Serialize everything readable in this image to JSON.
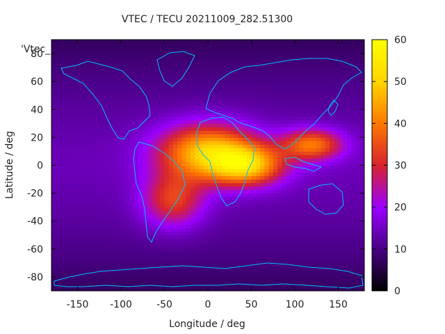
{
  "chart_data": {
    "type": "heatmap",
    "title": "VTEC / TECU 20211009_282.51300",
    "xlabel": "Longitude / deg",
    "ylabel": "Latitude / deg",
    "series_label": "'Vtec_",
    "xlim": [
      -180,
      180
    ],
    "ylim": [
      -90,
      90
    ],
    "xticks": [
      -150,
      -100,
      -50,
      0,
      50,
      100,
      150
    ],
    "yticks": [
      -80,
      -60,
      -40,
      -20,
      0,
      20,
      40,
      60,
      80
    ],
    "colorbar": {
      "range": [
        0,
        60
      ],
      "ticks": [
        0,
        10,
        20,
        30,
        40,
        50,
        60
      ],
      "palette": [
        "#000000",
        "#4a0087",
        "#9a00ff",
        "#d8232f",
        "#ff7a00",
        "#ffd400",
        "#ffff00"
      ]
    },
    "features": [
      {
        "lon": 0,
        "lat": 10,
        "peak": 48,
        "sigma_lon": 40,
        "sigma_lat": 14
      },
      {
        "lon": 45,
        "lat": 0,
        "peak": 44,
        "sigma_lon": 30,
        "sigma_lat": 10
      },
      {
        "lon": 120,
        "lat": 15,
        "peak": 40,
        "sigma_lon": 25,
        "sigma_lat": 8
      },
      {
        "lon": -40,
        "lat": -25,
        "peak": 34,
        "sigma_lon": 25,
        "sigma_lat": 14
      }
    ],
    "background_level": 14,
    "grid": false
  }
}
